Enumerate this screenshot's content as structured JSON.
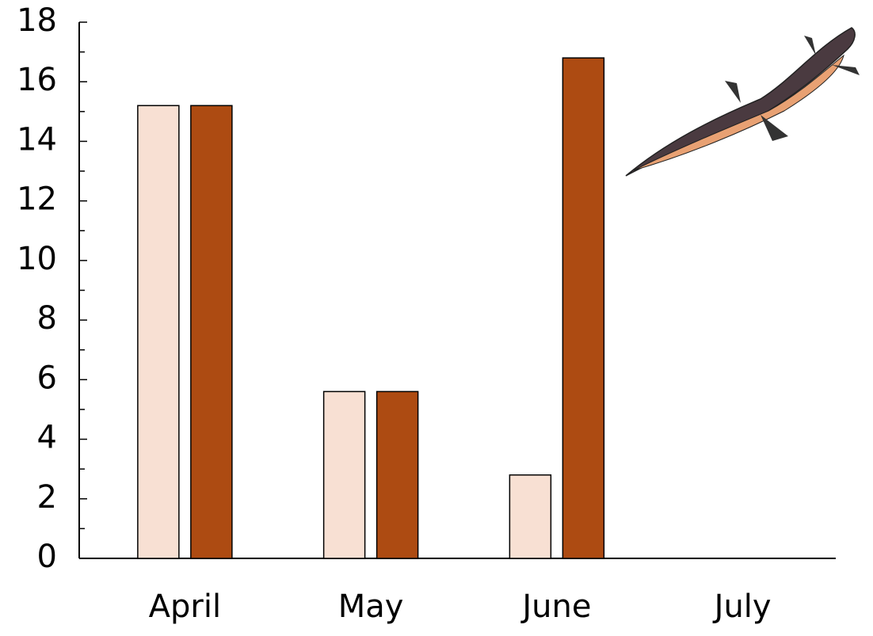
{
  "chart_data": {
    "type": "bar",
    "categories": [
      "April",
      "May",
      "June",
      "July"
    ],
    "series": [
      {
        "color": "#f8e0d3",
        "values": [
          15.2,
          5.6,
          2.8,
          0
        ]
      },
      {
        "color": "#ad4b12",
        "values": [
          15.2,
          5.6,
          16.8,
          0
        ]
      }
    ],
    "ylim": [
      0,
      18
    ],
    "yticks": [
      0,
      2,
      4,
      6,
      8,
      10,
      12,
      14,
      16,
      18
    ],
    "minor_yticks": [
      1,
      3,
      5,
      7,
      9,
      11,
      13,
      15,
      17
    ],
    "grid": false
  }
}
